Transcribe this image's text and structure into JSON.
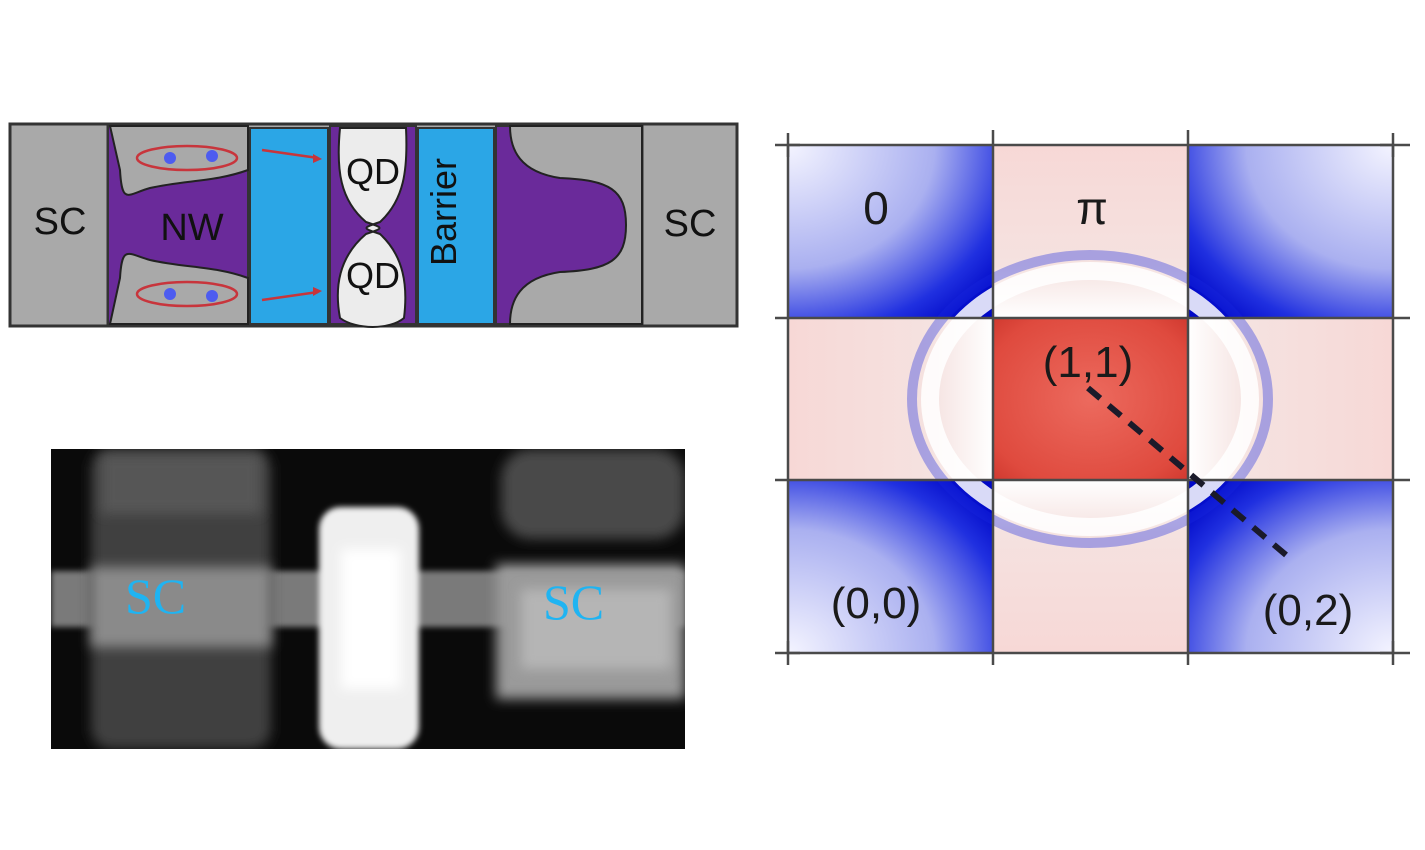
{
  "schematic": {
    "left_contact": "SC",
    "right_contact": "SC",
    "nanowire": "NW",
    "dot_top": "QD",
    "dot_bottom": "QD",
    "barrier": "Barrier"
  },
  "micrograph": {
    "left_label": "SC",
    "right_label": "SC"
  },
  "phase_map": {
    "region_zero": "0",
    "region_pi": "π",
    "state_center": "(1,1)",
    "state_bottom_left": "(0,0)",
    "state_bottom_right": "(0,2)",
    "colors": {
      "zero_phase": "#0a10d8",
      "pi_phase": "#e0473c",
      "neutral": "#ffffff"
    }
  }
}
